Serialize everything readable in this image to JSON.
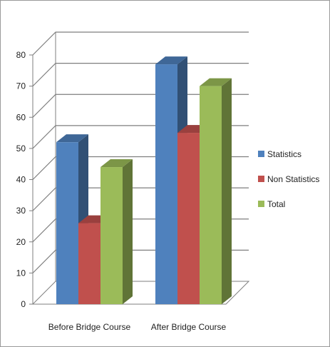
{
  "chart_data": {
    "type": "bar",
    "categories": [
      "Before Bridge Course",
      "After Bridge Course"
    ],
    "series": [
      {
        "name": "Statistics",
        "values": [
          52,
          77
        ],
        "color": "#4f81bd"
      },
      {
        "name": "Non Statistics",
        "values": [
          26,
          55
        ],
        "color": "#c0504d"
      },
      {
        "name": "Total",
        "values": [
          44,
          70
        ],
        "color": "#9bbb59"
      }
    ],
    "ylim": [
      0,
      80
    ],
    "yticks": [
      "0",
      "10",
      "20",
      "30",
      "40",
      "50",
      "60",
      "70",
      "80"
    ],
    "grid": true,
    "legend": "right",
    "style": "3d-clustered-column"
  }
}
